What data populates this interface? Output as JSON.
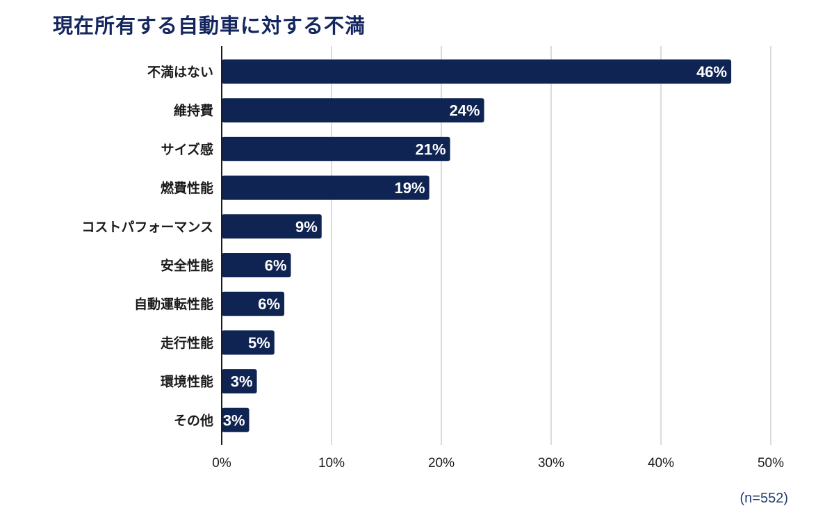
{
  "chart_data": {
    "type": "bar",
    "orientation": "horizontal",
    "title": "現在所有する自動車に対する不満",
    "categories": [
      "不満はない",
      "維持費",
      "サイズ感",
      "燃費性能",
      "コストパフォーマンス",
      "安全性能",
      "自動運転性能",
      "走行性能",
      "環境性能",
      "その他"
    ],
    "values": [
      46.4,
      23.9,
      20.8,
      18.9,
      9.1,
      6.3,
      5.7,
      4.8,
      3.2,
      2.5
    ],
    "value_labels": [
      "46%",
      "24%",
      "21%",
      "19%",
      "9%",
      "6%",
      "6%",
      "5%",
      "3%",
      "3%"
    ],
    "xlim": [
      0,
      50
    ],
    "x_ticks": [
      0,
      10,
      20,
      30,
      40,
      50
    ],
    "x_tick_labels": [
      "0%",
      "10%",
      "20%",
      "30%",
      "40%",
      "50%"
    ],
    "grid": true,
    "bar_color": "#0f2453",
    "note": "(n=552)"
  }
}
